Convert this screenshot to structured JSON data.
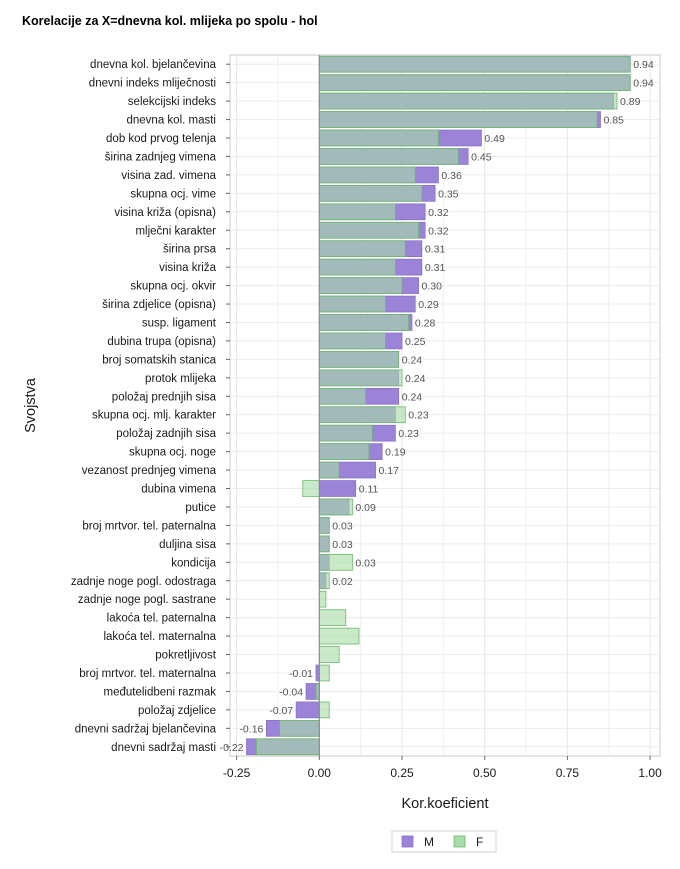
{
  "chart_data": {
    "type": "bar",
    "orientation": "horizontal",
    "title": "Korelacije za X=dnevna kol. mlijeka po spolu - hol",
    "xlabel": "Kor.koeficient",
    "ylabel": "Svojstva",
    "xlim": [
      -0.27,
      1.03
    ],
    "xticks": [
      -0.25,
      0.0,
      0.25,
      0.5,
      0.75,
      1.0
    ],
    "xtick_labels": [
      "-0.25",
      "0.00",
      "0.25",
      "0.50",
      "0.75",
      "1.00"
    ],
    "grid": true,
    "legend_position": "bottom",
    "categories": [
      "dnevna kol. bjelančevina",
      "dnevni indeks mliječnosti",
      "selekcijski indeks",
      "dnevna kol. masti",
      "dob kod prvog telenja",
      "širina zadnjeg vimena",
      "visina zad. vimena",
      "skupna ocj. vime",
      "visina križa (opisna)",
      "mlječni karakter",
      "širina prsa",
      "visina križa",
      "skupna ocj. okvir",
      "širina zdjelice (opisna)",
      "susp. ligament",
      "dubina trupa (opisna)",
      "broj somatskih stanica",
      "protok mlijeka",
      "položaj prednjih sisa",
      "skupna ocj. mlj. karakter",
      "položaj zadnjih sisa",
      "skupna ocj. noge",
      "vezanost prednjeg vimena",
      "dubina vimena",
      "putice",
      "broj mrtvor. tel. paternalna",
      "duljina sisa",
      "kondicija",
      "zadnje noge pogl. odostraga",
      "zadnje noge pogl. sastrane",
      "lakoća tel. paternalna",
      "lakoća tel. maternalna",
      "pokretljivost",
      "broj mrtvor. tel. maternalna",
      "međutelidbeni razmak",
      "položaj zdjelice",
      "dnevni sadržaj bjelančevina",
      "dnevni sadržaj masti"
    ],
    "series": [
      {
        "name": "M",
        "color": "#9b84d8",
        "values": [
          0.94,
          0.94,
          0.89,
          0.85,
          0.49,
          0.45,
          0.36,
          0.35,
          0.32,
          0.32,
          0.31,
          0.31,
          0.3,
          0.29,
          0.28,
          0.25,
          0.24,
          0.24,
          0.24,
          0.23,
          0.23,
          0.19,
          0.17,
          0.11,
          0.09,
          0.03,
          0.03,
          0.03,
          0.02,
          0.0,
          0.0,
          0.0,
          0.0,
          -0.01,
          -0.04,
          -0.07,
          -0.16,
          -0.22
        ]
      },
      {
        "name": "F",
        "color": "#a8dca8",
        "values": [
          0.94,
          0.94,
          0.9,
          0.84,
          0.36,
          0.42,
          0.29,
          0.31,
          0.23,
          0.3,
          0.26,
          0.23,
          0.25,
          0.2,
          0.27,
          0.2,
          0.24,
          0.25,
          0.14,
          0.26,
          0.16,
          0.15,
          0.06,
          -0.05,
          0.1,
          0.03,
          0.03,
          0.1,
          0.03,
          0.02,
          0.08,
          0.12,
          0.06,
          0.03,
          -0.01,
          0.03,
          -0.12,
          -0.19
        ]
      }
    ],
    "value_labels": [
      "0.94",
      "0.94",
      "0.89",
      "0.85",
      "0.49",
      "0.45",
      "0.36",
      "0.35",
      "0.32",
      "0.32",
      "0.31",
      "0.31",
      "0.30",
      "0.29",
      "0.28",
      "0.25",
      "0.24",
      "0.24",
      "0.24",
      "0.23",
      "0.23",
      "0.19",
      "0.17",
      "0.11",
      "0.09",
      "0.03",
      "0.03",
      "0.03",
      "0.02",
      "",
      "",
      "",
      "",
      "-0.01",
      "-0.04",
      "-0.07",
      "-0.16",
      "-0.22"
    ]
  }
}
